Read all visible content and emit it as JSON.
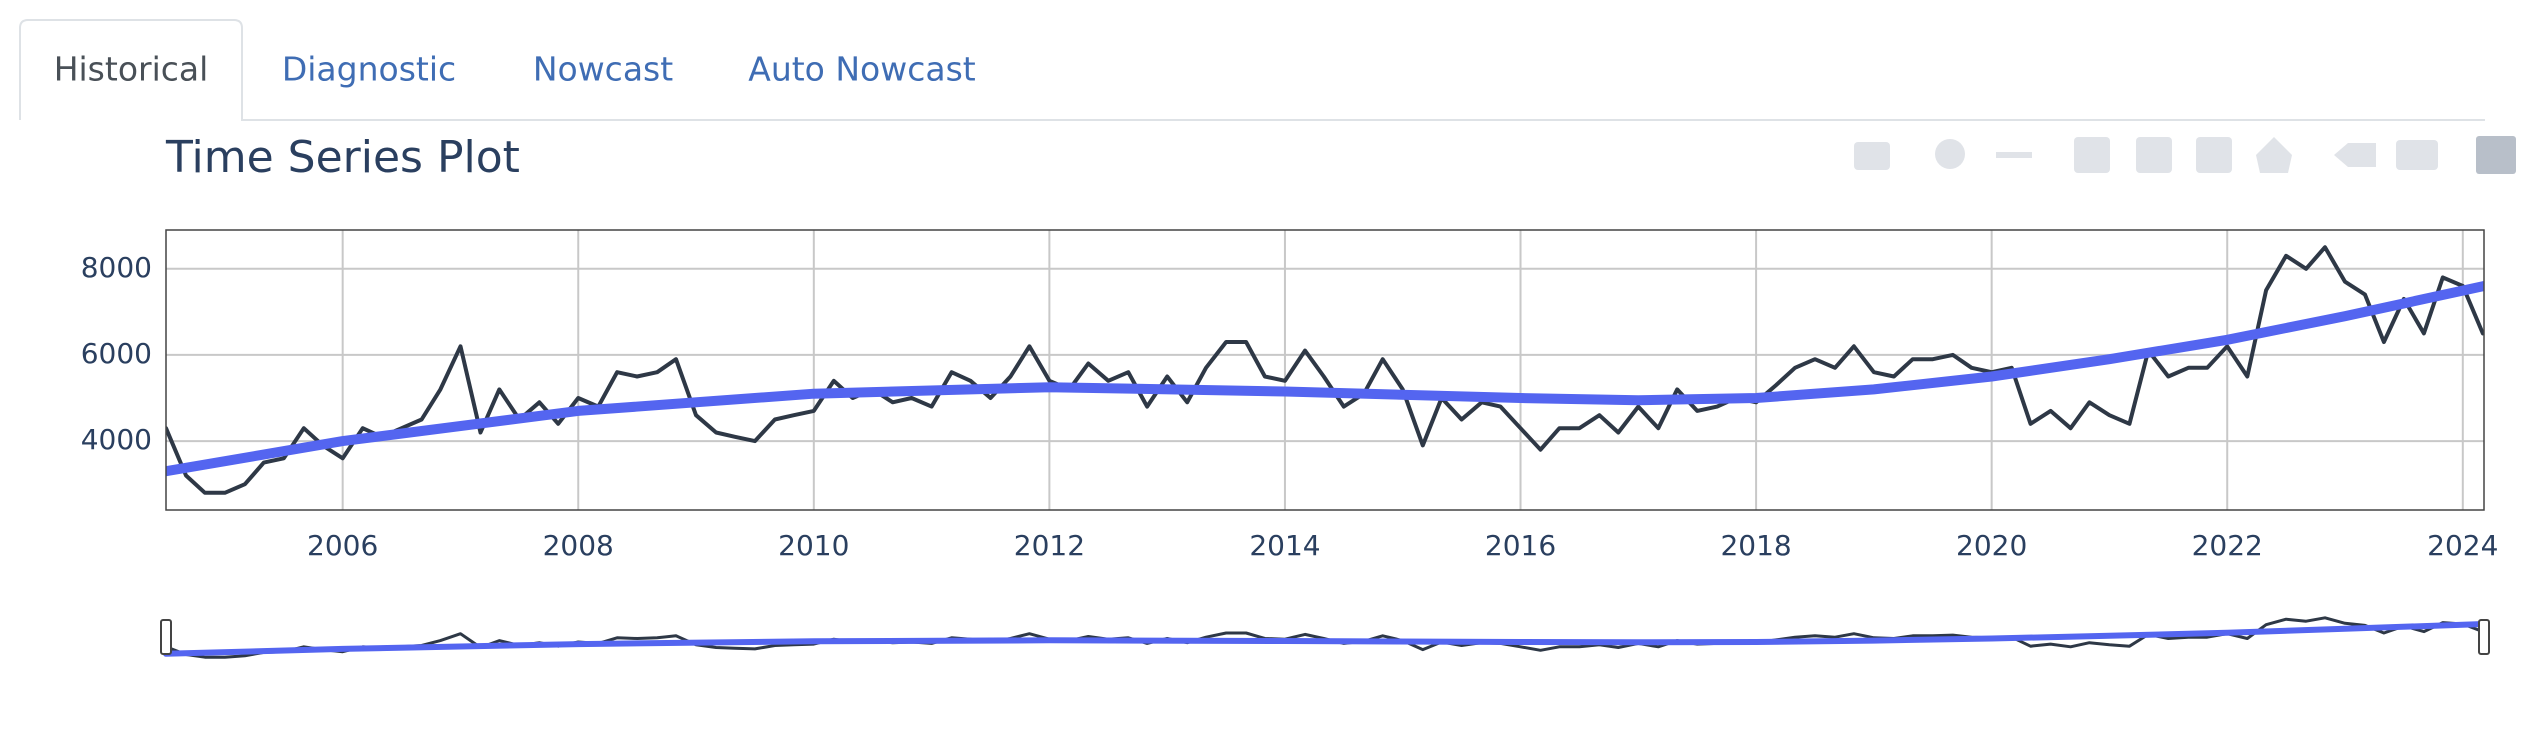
{
  "tabs": [
    "Historical",
    "Diagnostic",
    "Nowcast",
    "Auto Nowcast"
  ],
  "chart_data": {
    "type": "line",
    "title": "Time Series Plot",
    "xlim": [
      2004.5,
      2024.18
    ],
    "xticks": [
      2006,
      2008,
      2010,
      2012,
      2014,
      2016,
      2018,
      2020,
      2022,
      2024
    ],
    "ylim": [
      2400,
      8900
    ],
    "yticks": [
      4000,
      6000,
      8000
    ],
    "grid": true,
    "series": [
      {
        "color": "#2e3846",
        "x": [
          2004.5,
          2004.67,
          2004.83,
          2005,
          2005.17,
          2005.33,
          2005.5,
          2005.67,
          2005.83,
          2006,
          2006.17,
          2006.33,
          2006.5,
          2006.67,
          2006.83,
          2007,
          2007.17,
          2007.33,
          2007.5,
          2007.67,
          2007.83,
          2008,
          2008.17,
          2008.33,
          2008.5,
          2008.67,
          2008.83,
          2009,
          2009.17,
          2009.33,
          2009.5,
          2009.67,
          2009.83,
          2010,
          2010.17,
          2010.33,
          2010.5,
          2010.67,
          2010.83,
          2011,
          2011.17,
          2011.33,
          2011.5,
          2011.67,
          2011.83,
          2012,
          2012.17,
          2012.33,
          2012.5,
          2012.67,
          2012.83,
          2013,
          2013.17,
          2013.33,
          2013.5,
          2013.67,
          2013.83,
          2014,
          2014.17,
          2014.33,
          2014.5,
          2014.67,
          2014.83,
          2015,
          2015.17,
          2015.33,
          2015.5,
          2015.67,
          2015.83,
          2016,
          2016.17,
          2016.33,
          2016.5,
          2016.67,
          2016.83,
          2017,
          2017.17,
          2017.33,
          2017.5,
          2017.67,
          2017.83,
          2018,
          2018.17,
          2018.33,
          2018.5,
          2018.67,
          2018.83,
          2019,
          2019.17,
          2019.33,
          2019.5,
          2019.67,
          2019.83,
          2020,
          2020.17,
          2020.33,
          2020.5,
          2020.67,
          2020.83,
          2021,
          2021.17,
          2021.33,
          2021.5,
          2021.67,
          2021.83,
          2022,
          2022.17,
          2022.33,
          2022.5,
          2022.67,
          2022.83,
          2023,
          2023.17,
          2023.33,
          2023.5,
          2023.67,
          2023.83,
          2024,
          2024.17
        ],
        "values": [
          4300,
          3200,
          2800,
          2800,
          3000,
          3500,
          3600,
          4300,
          3900,
          3600,
          4300,
          4100,
          4300,
          4500,
          5200,
          6200,
          4200,
          5200,
          4500,
          4900,
          4400,
          5000,
          4800,
          5600,
          5500,
          5600,
          5900,
          4600,
          4200,
          4100,
          4000,
          4500,
          4600,
          4700,
          5400,
          5000,
          5200,
          4900,
          5000,
          4800,
          5600,
          5400,
          5000,
          5500,
          6200,
          5400,
          5200,
          5800,
          5400,
          5600,
          4800,
          5500,
          4900,
          5700,
          6300,
          6300,
          5500,
          5400,
          6100,
          5500,
          4800,
          5100,
          5900,
          5200,
          3900,
          5000,
          4500,
          4900,
          4800,
          4300,
          3800,
          4300,
          4300,
          4600,
          4200,
          4800,
          4300,
          5200,
          4700,
          4800,
          5000,
          4900,
          5300,
          5700,
          5900,
          5700,
          6200,
          5600,
          5500,
          5900,
          5900,
          6000,
          5700,
          5600,
          5700,
          4400,
          4700,
          4300,
          4900,
          4600,
          4400,
          6100,
          5500,
          5700,
          5700,
          6200,
          5500,
          7500,
          8300,
          8000,
          8500,
          7700,
          7400,
          6300,
          7300,
          6500,
          7800,
          7600,
          6500
        ]
      },
      {
        "color": "#5465f0",
        "x": [
          2004.5,
          2006,
          2008,
          2010,
          2012,
          2014,
          2016,
          2017,
          2018,
          2019,
          2020,
          2021,
          2022,
          2023,
          2024.18
        ],
        "values": [
          3300,
          4000,
          4700,
          5100,
          5250,
          5150,
          5000,
          4950,
          5000,
          5200,
          5500,
          5900,
          6350,
          6900,
          7600
        ]
      }
    ]
  }
}
